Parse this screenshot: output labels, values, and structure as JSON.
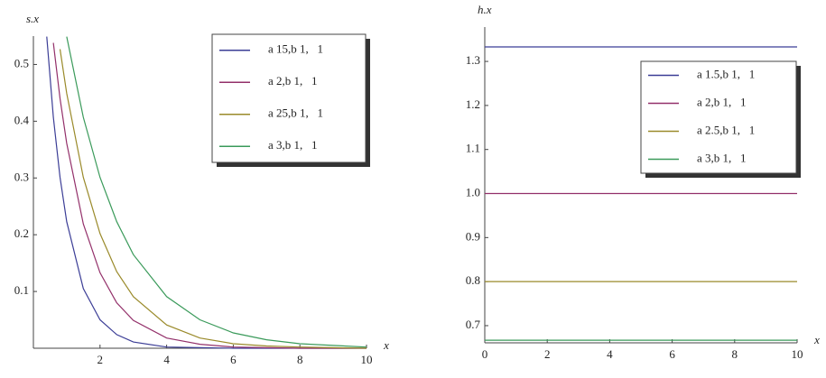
{
  "chart_data": [
    {
      "type": "line",
      "y_label": "s.x",
      "x_label": "x",
      "xlim": [
        0,
        10
      ],
      "ylim": [
        0,
        0.55
      ],
      "xticks": [
        2,
        4,
        6,
        8,
        10
      ],
      "yticks": [
        0.1,
        0.2,
        0.3,
        0.4,
        0.5
      ],
      "x": [
        0.4,
        0.6,
        0.8,
        1,
        1.5,
        2,
        2.5,
        3,
        4,
        5,
        6,
        7,
        8,
        9,
        10
      ],
      "series": [
        {
          "name": "a 15,b 1,   1",
          "color": "#3b3d96",
          "values": [
            0.549,
            0.407,
            0.301,
            0.223,
            0.105,
            0.05,
            0.024,
            0.011,
            0.002,
            0.001,
            0,
            0,
            0,
            0,
            0
          ]
        },
        {
          "name": "a 2,b 1,   1",
          "color": "#93306a",
          "values": [
            null,
            0.538,
            0.44,
            0.361,
            0.219,
            0.133,
            0.08,
            0.049,
            0.018,
            0.007,
            0.002,
            0.001,
            0,
            0,
            0
          ]
        },
        {
          "name": "a 25,b 1,   1",
          "color": "#9a8a2a",
          "values": [
            null,
            null,
            0.527,
            0.449,
            0.301,
            0.202,
            0.135,
            0.091,
            0.041,
            0.018,
            0.008,
            0.004,
            0.002,
            0.001,
            0
          ]
        },
        {
          "name": "a 3,b 1,   1",
          "color": "#3a9a5a",
          "values": [
            null,
            null,
            null,
            0.549,
            0.407,
            0.301,
            0.223,
            0.165,
            0.091,
            0.05,
            0.027,
            0.015,
            0.008,
            0.005,
            0.002
          ]
        }
      ]
    },
    {
      "type": "line",
      "y_label": "h.x",
      "x_label": "x",
      "xlim": [
        0,
        10
      ],
      "ylim": [
        0.661,
        1.378
      ],
      "xticks": [
        0,
        2,
        4,
        6,
        8,
        10
      ],
      "yticks": [
        0.7,
        0.8,
        0.9,
        {
          "value": 1,
          "label": "1.0"
        },
        1.1,
        1.2,
        1.3
      ],
      "x": [
        0,
        10
      ],
      "series": [
        {
          "name": "a 1.5,b 1,   1",
          "color": "#3b3d96",
          "values": [
            1.333,
            1.333
          ]
        },
        {
          "name": "a 2,b 1,   1",
          "color": "#93306a",
          "values": [
            1.0,
            1.0
          ]
        },
        {
          "name": "a 2.5,b 1,   1",
          "color": "#9a8a2a",
          "values": [
            0.8,
            0.8
          ]
        },
        {
          "name": "a 3,b 1,   1",
          "color": "#3a9a5a",
          "values": [
            0.667,
            0.667
          ]
        }
      ]
    }
  ]
}
